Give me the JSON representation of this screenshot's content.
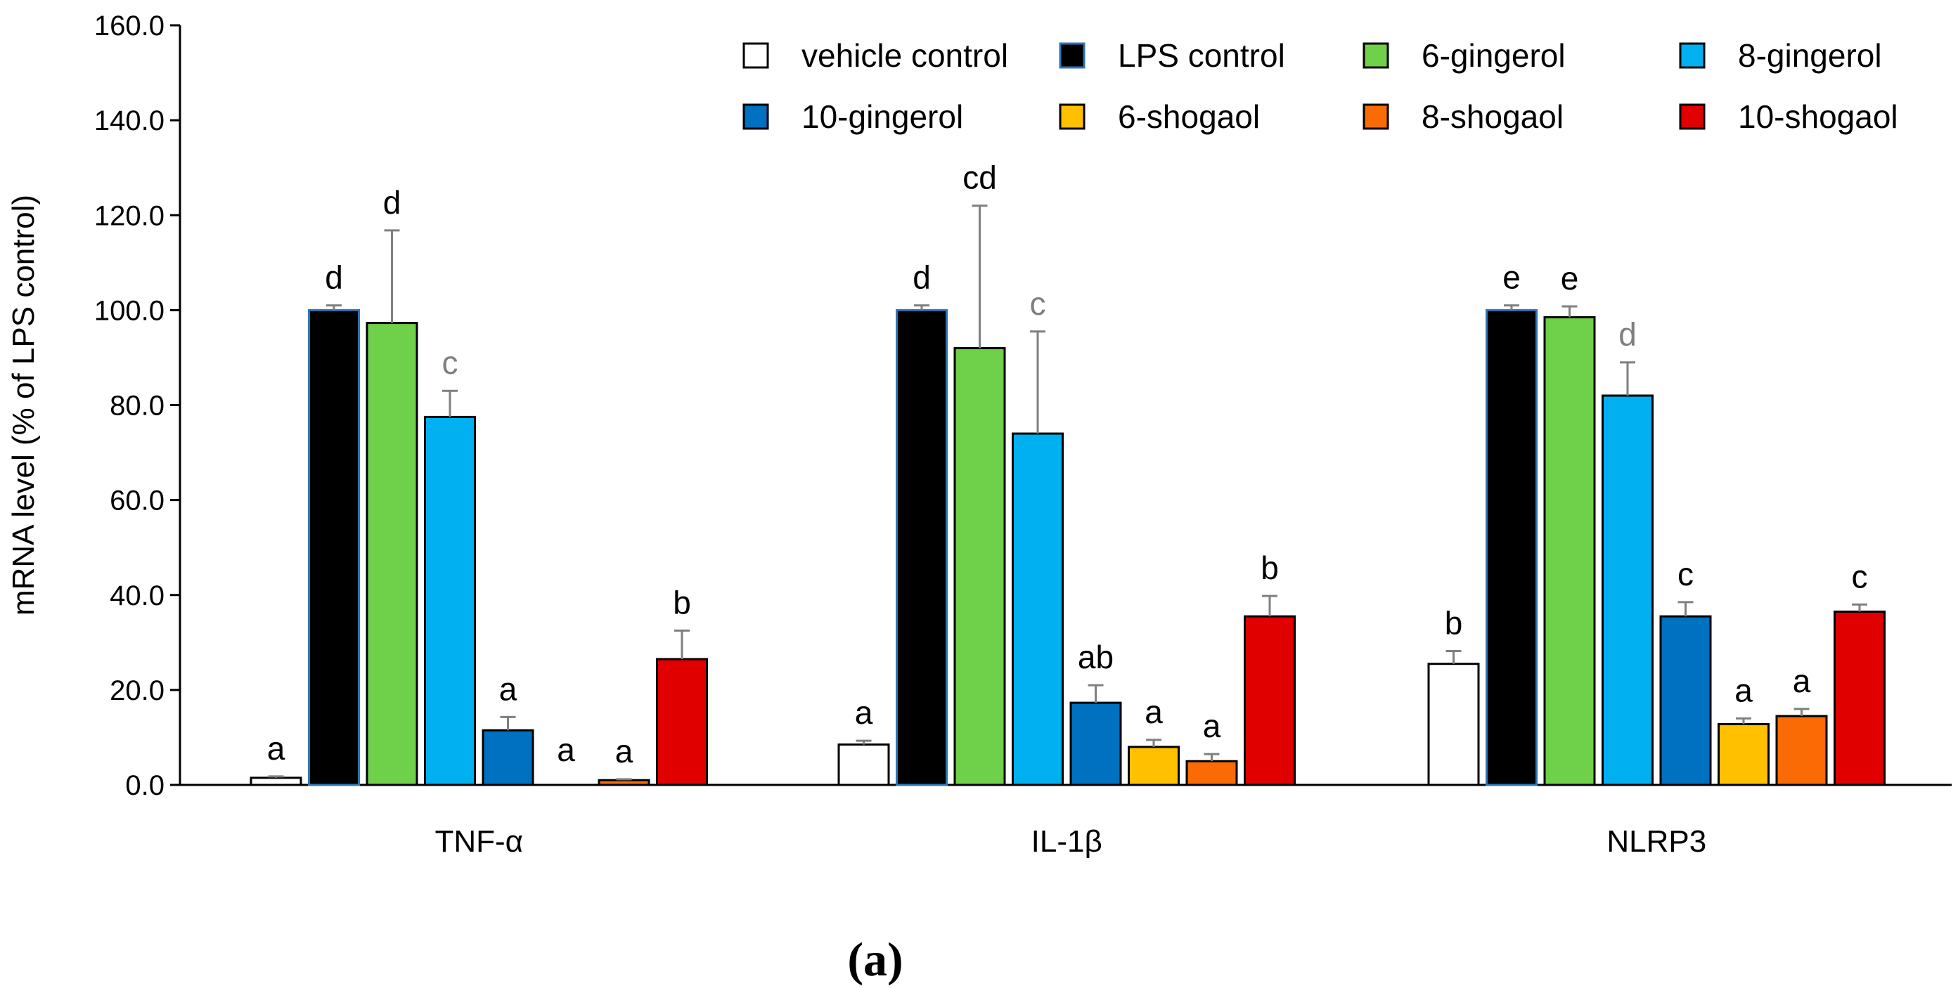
{
  "chart_data": {
    "type": "bar",
    "ylabel": "mRNA level (% of LPS control)",
    "ylim": [
      0,
      160
    ],
    "yticks": [
      "0.0",
      "20.0",
      "40.0",
      "60.0",
      "80.0",
      "100.0",
      "120.0",
      "140.0",
      "160.0"
    ],
    "categories": [
      "TNF-α",
      "IL-1β",
      "NLRP3"
    ],
    "panel_label": "(a)",
    "series": [
      {
        "name": "vehicle control",
        "color": "#ffffff",
        "values": [
          1.5,
          8.5,
          25.5
        ],
        "errors": [
          0.3,
          0.8,
          2.7
        ],
        "labels": [
          "a",
          "a",
          "b"
        ],
        "label_colors": [
          "#000000",
          "#000000",
          "#000000"
        ]
      },
      {
        "name": "LPS control",
        "color": "#000000",
        "edge": "#2e75b6",
        "values": [
          100.0,
          100.0,
          100.0
        ],
        "errors": [
          1.0,
          1.0,
          1.0
        ],
        "labels": [
          "d",
          "d",
          "e"
        ],
        "label_colors": [
          "#000000",
          "#000000",
          "#000000"
        ]
      },
      {
        "name": "6-gingerol",
        "color": "#6fd04a",
        "values": [
          97.3,
          92.0,
          98.5
        ],
        "errors": [
          19.5,
          30.0,
          2.3
        ],
        "labels": [
          "d",
          "cd",
          "e"
        ],
        "label_colors": [
          "#000000",
          "#000000",
          "#000000"
        ]
      },
      {
        "name": "8-gingerol",
        "color": "#00b0f0",
        "values": [
          77.5,
          74.0,
          82.0
        ],
        "errors": [
          5.5,
          21.5,
          7.0
        ],
        "labels": [
          "c",
          "c",
          "d"
        ],
        "label_colors": [
          "#808080",
          "#808080",
          "#808080"
        ]
      },
      {
        "name": "10-gingerol",
        "color": "#0070c0",
        "values": [
          11.5,
          17.3,
          35.5
        ],
        "errors": [
          2.8,
          3.7,
          3.0
        ],
        "labels": [
          "a",
          "ab",
          "c"
        ],
        "label_colors": [
          "#000000",
          "#000000",
          "#000000"
        ]
      },
      {
        "name": "6-shogaol",
        "color": "#ffc000",
        "values": [
          0.0,
          8.0,
          12.8
        ],
        "errors": [
          0.0,
          1.5,
          1.2
        ],
        "labels": [
          "a",
          "a",
          "a"
        ],
        "label_colors": [
          "#000000",
          "#000000",
          "#000000"
        ]
      },
      {
        "name": "8-shogaol",
        "color": "#fa6a05",
        "values": [
          1.0,
          5.0,
          14.5
        ],
        "errors": [
          0.2,
          1.5,
          1.5
        ],
        "labels": [
          "a",
          "a",
          "a"
        ],
        "label_colors": [
          "#000000",
          "#000000",
          "#000000"
        ]
      },
      {
        "name": "10-shogaol",
        "color": "#e00000",
        "values": [
          26.5,
          35.5,
          36.5
        ],
        "errors": [
          6.0,
          4.3,
          1.5
        ],
        "labels": [
          "b",
          "b",
          "c"
        ],
        "label_colors": [
          "#000000",
          "#000000",
          "#000000"
        ]
      }
    ],
    "legend": {
      "position": "top-right",
      "rows": [
        [
          "vehicle control",
          "LPS control",
          "6-gingerol",
          "8-gingerol"
        ],
        [
          "10-gingerol",
          "6-shogaol",
          "8-shogaol",
          "10-shogaol"
        ]
      ]
    }
  }
}
